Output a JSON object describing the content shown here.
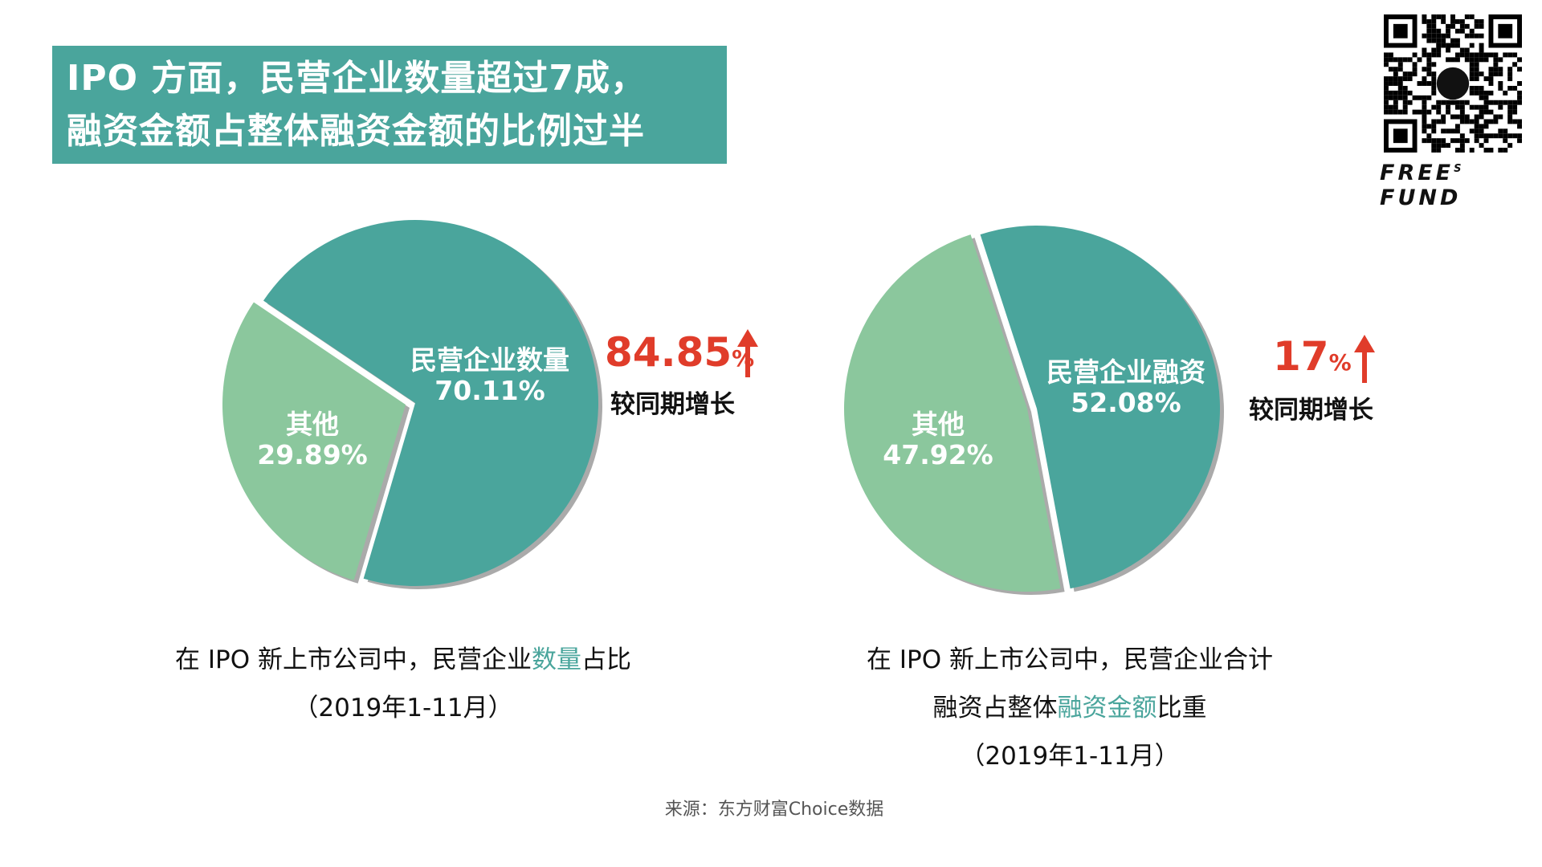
{
  "title": {
    "line1": "IPO 方面，民营企业数量超过7成，",
    "line2": "融资金额占整体融资金额的比例过半",
    "background": "#4aa59c"
  },
  "brand": {
    "name": "FREE",
    "sup": "S",
    "suffix": "FUND",
    "qr_icon": "qr-code-icon"
  },
  "colors": {
    "private": "#4aa59c",
    "other": "#8bc79d",
    "growth": "#e03c2a"
  },
  "chart_data": [
    {
      "type": "pie",
      "slices": [
        {
          "label": "民营企业数量",
          "value": 70.11,
          "value_text": "70.11%",
          "color": "#4aa59c"
        },
        {
          "label": "其他",
          "value": 29.89,
          "value_text": "29.89%",
          "color": "#8bc79d"
        }
      ],
      "growth": {
        "value": "84.85",
        "unit": "%",
        "label": "较同期增长",
        "direction": "up"
      },
      "caption": {
        "line1_pre": "在 IPO 新上市公司中，民营企业",
        "line1_hl": "数量",
        "line1_post": "占比",
        "line2": "（2019年1-11月）"
      }
    },
    {
      "type": "pie",
      "slices": [
        {
          "label": "民营企业融资",
          "value": 52.08,
          "value_text": "52.08%",
          "color": "#4aa59c"
        },
        {
          "label": "其他",
          "value": 47.92,
          "value_text": "47.92%",
          "color": "#8bc79d"
        }
      ],
      "growth": {
        "value": "17",
        "unit": "%",
        "label": "较同期增长",
        "direction": "up"
      },
      "caption": {
        "line1": "在 IPO 新上市公司中，民营企业合计",
        "line2_pre": "融资占整体",
        "line2_hl": "融资金额",
        "line2_post": "比重",
        "line3": "（2019年1-11月）"
      }
    }
  ],
  "source": "来源：东方财富Choice数据"
}
